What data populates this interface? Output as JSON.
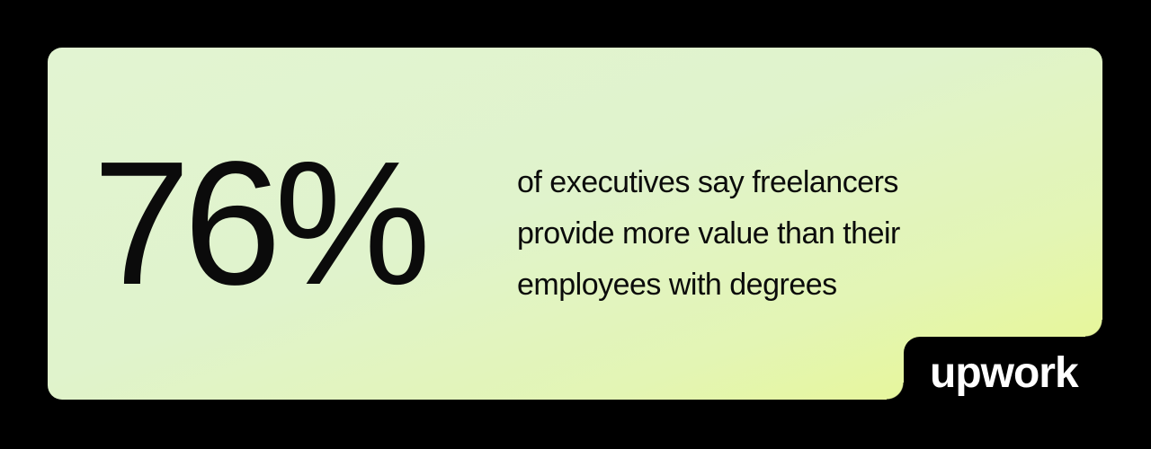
{
  "stat": "76%",
  "description": {
    "lines": [
      "of executives say freelancers",
      "provide more value than their",
      "employees with degrees"
    ]
  },
  "logo": "upwork",
  "colors": {
    "background": "#000000",
    "card_top": "#e2f4d2",
    "card_bottom": "#e9f78e",
    "text": "#0b0b0b",
    "logo": "#ffffff"
  }
}
